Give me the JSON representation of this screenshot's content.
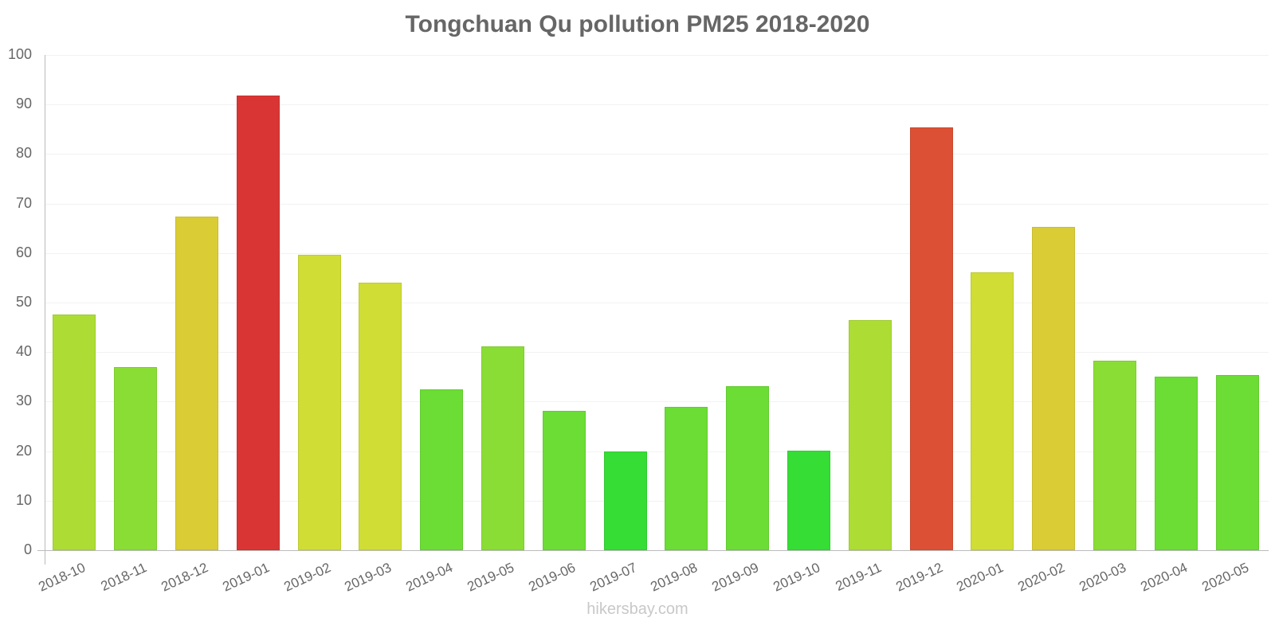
{
  "title": "Tongchuan Qu pollution PM25 2018-2020",
  "watermark": "hikersbay.com",
  "y_ticks": [
    "0",
    "10",
    "20",
    "30",
    "40",
    "50",
    "60",
    "70",
    "80",
    "90",
    "100"
  ],
  "chart_data": {
    "type": "bar",
    "title": "Tongchuan Qu pollution PM25 2018-2020",
    "xlabel": "",
    "ylabel": "",
    "ylim": [
      0,
      100
    ],
    "grid": true,
    "legend": "none",
    "categories": [
      "2018-10",
      "2018-11",
      "2018-12",
      "2019-01",
      "2019-02",
      "2019-03",
      "2019-04",
      "2019-05",
      "2019-06",
      "2019-07",
      "2019-08",
      "2019-09",
      "2019-10",
      "2019-11",
      "2019-12",
      "2020-01",
      "2020-02",
      "2020-03",
      "2020-04",
      "2020-05"
    ],
    "values": [
      47.6,
      37.0,
      67.4,
      91.8,
      59.6,
      54.0,
      32.5,
      41.2,
      28.1,
      19.9,
      28.9,
      33.1,
      20.1,
      46.5,
      85.4,
      56.1,
      65.3,
      38.3,
      35.0,
      35.4
    ],
    "colors": [
      "#addd35",
      "#8add35",
      "#dacc35",
      "#da3535",
      "#cfdd35",
      "#cfdd35",
      "#6bdd35",
      "#8add35",
      "#6bdd35",
      "#35dd35",
      "#6bdd35",
      "#6bdd35",
      "#35dd35",
      "#addd35",
      "#dc5035",
      "#cfdd35",
      "#dacc35",
      "#8add35",
      "#6bdd35",
      "#6bdd35"
    ]
  }
}
